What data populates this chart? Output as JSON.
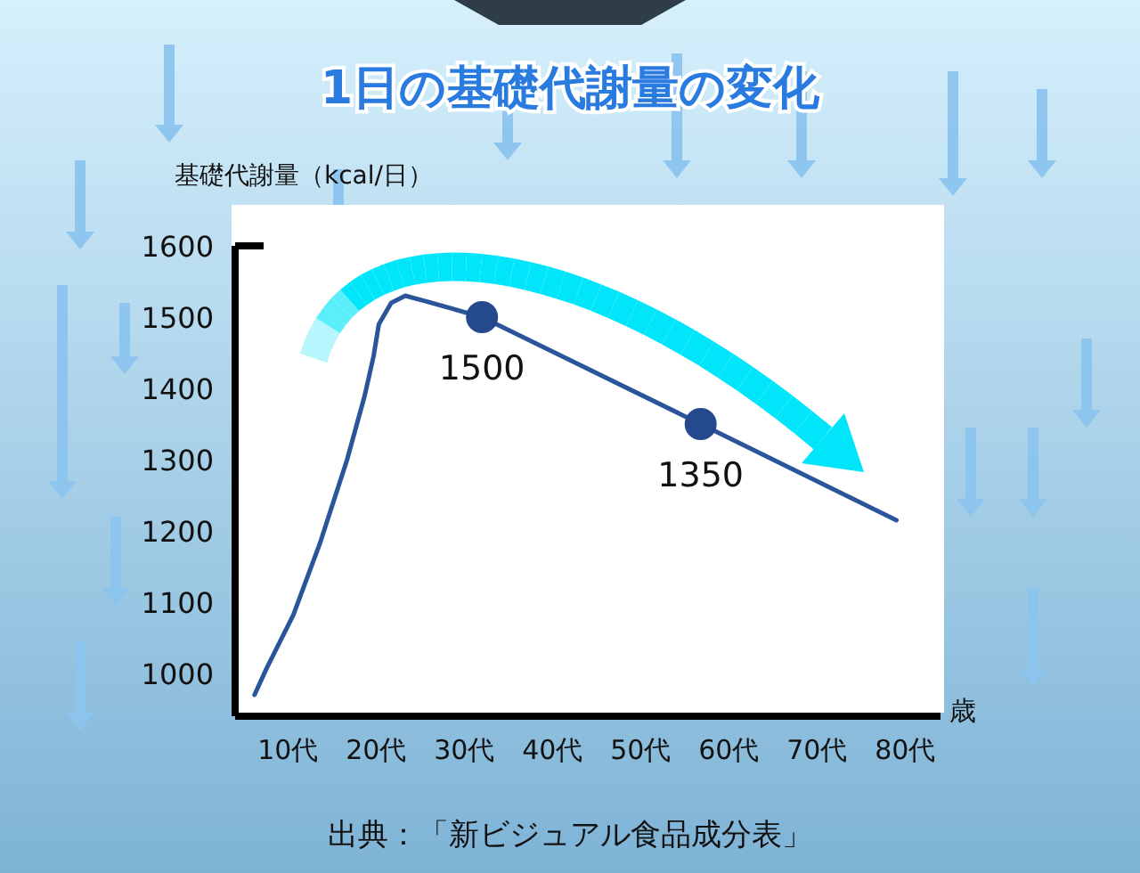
{
  "chart_data": {
    "type": "line",
    "title": "1日の基礎代謝量の変化",
    "ylabel": "基礎代謝量（kcal/日）",
    "xlabel": "歳",
    "xlim": [
      4,
      84
    ],
    "xticks": [
      {
        "value": 10,
        "label": "10代"
      },
      {
        "value": 20,
        "label": "20代"
      },
      {
        "value": 30,
        "label": "30代"
      },
      {
        "value": 40,
        "label": "40代"
      },
      {
        "value": 50,
        "label": "50代"
      },
      {
        "value": 60,
        "label": "60代"
      },
      {
        "value": 70,
        "label": "70代"
      },
      {
        "value": 80,
        "label": "80代"
      }
    ],
    "ylim": [
      940,
      1600
    ],
    "yticks": [
      1000,
      1100,
      1200,
      1300,
      1400,
      1500,
      1600
    ],
    "series": [
      {
        "color": "#2b559a",
        "x": [
          6.2,
          7.6,
          10.6,
          13.6,
          16.7,
          18.7,
          19.7,
          20.3,
          21.7,
          23.3,
          25.7,
          32,
          56.8,
          79
        ],
        "values": [
          970,
          1008,
          1082,
          1182,
          1300,
          1390,
          1445,
          1490,
          1520,
          1530,
          1522,
          1500,
          1350,
          1215
        ]
      },
      {
        "type": "scatter",
        "color": "#24498f",
        "x": [
          32,
          56.8
        ],
        "values": [
          1500,
          1350
        ],
        "value_labels": [
          "1500",
          "1350"
        ]
      }
    ],
    "annotations": [
      "出典：「新ビジュアル食品成分表」"
    ]
  }
}
